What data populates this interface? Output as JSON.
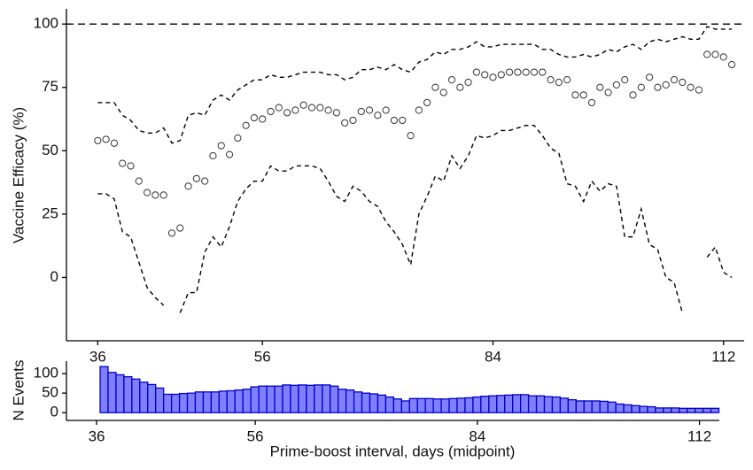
{
  "chart_data": [
    {
      "type": "scatter",
      "ylabel": "Vaccine Efficacy (%)",
      "x": [
        36,
        37,
        38,
        39,
        40,
        41,
        42,
        43,
        44,
        45,
        46,
        47,
        48,
        49,
        50,
        51,
        52,
        53,
        54,
        55,
        56,
        57,
        58,
        59,
        60,
        61,
        62,
        63,
        64,
        65,
        66,
        67,
        68,
        69,
        70,
        71,
        72,
        73,
        74,
        75,
        76,
        77,
        78,
        79,
        80,
        81,
        82,
        83,
        84,
        85,
        86,
        87,
        88,
        89,
        90,
        91,
        92,
        93,
        94,
        95,
        96,
        97,
        98,
        99,
        100,
        101,
        102,
        103,
        104,
        105,
        106,
        107,
        108,
        109,
        110,
        111,
        112,
        113
      ],
      "values": [
        54,
        54.5,
        53,
        45,
        44,
        38,
        33.5,
        32.5,
        32.5,
        17.5,
        19.5,
        36,
        39,
        38,
        48,
        52,
        48.5,
        55,
        60,
        63,
        62.5,
        65.5,
        67,
        65,
        66,
        68,
        67,
        67,
        66,
        65,
        61,
        62,
        65.5,
        66,
        64,
        66,
        62,
        62,
        56,
        66,
        69,
        75,
        73,
        78,
        75,
        77,
        81,
        80,
        79,
        80,
        81,
        81,
        81,
        81,
        81,
        78,
        77,
        78,
        72,
        72,
        69,
        75,
        73,
        76,
        78,
        72,
        75,
        79,
        75,
        76,
        78,
        77,
        75,
        74,
        88,
        88,
        87,
        84
      ],
      "upper": [
        69,
        69,
        69,
        64,
        62,
        58,
        57,
        57,
        59,
        53,
        54,
        64,
        65,
        64,
        70,
        72,
        70,
        74,
        76,
        78,
        78,
        80,
        79,
        79,
        80,
        81,
        81,
        81,
        80,
        80,
        78,
        79,
        82,
        82,
        83,
        82,
        84,
        82,
        81,
        85,
        86,
        89,
        88,
        90,
        90,
        91,
        93,
        91,
        91,
        92,
        92,
        92,
        92,
        92,
        90,
        90,
        88,
        87,
        87,
        88,
        87,
        88,
        90,
        89,
        91,
        92,
        90,
        93,
        94,
        93,
        94,
        95,
        94,
        94,
        99,
        98,
        98,
        98
      ],
      "lower": [
        33,
        33,
        31,
        18,
        16,
        6,
        -4,
        -8,
        -11,
        null,
        -14,
        -6,
        -6,
        10,
        16,
        12,
        20,
        30,
        35,
        38,
        38,
        44,
        42,
        42,
        44,
        44,
        44,
        43,
        38,
        32,
        30,
        36,
        34,
        30,
        28,
        22,
        18,
        13,
        5,
        25,
        32,
        40,
        38,
        48,
        43,
        48,
        56,
        55,
        56,
        58,
        58,
        59,
        60,
        60,
        56,
        51,
        49,
        37,
        36,
        30,
        38,
        34,
        37,
        36,
        16,
        16,
        27,
        13,
        11,
        0,
        -2,
        -14,
        null,
        null,
        8,
        12,
        2,
        0
      ],
      "hline": 100,
      "xlim": [
        32.2,
        114.5
      ],
      "xticks": [
        36,
        56,
        84,
        112
      ],
      "ylim": [
        -25,
        106
      ],
      "yticks": [
        0,
        25,
        50,
        75,
        100
      ]
    },
    {
      "type": "bar",
      "ylabel": "N Events",
      "xlabel": "Prime-boost interval, days (midpoint)",
      "x": [
        36,
        37,
        38,
        39,
        40,
        41,
        42,
        43,
        44,
        45,
        46,
        47,
        48,
        49,
        50,
        51,
        52,
        53,
        54,
        55,
        56,
        57,
        58,
        59,
        60,
        61,
        62,
        63,
        64,
        65,
        66,
        67,
        68,
        69,
        70,
        71,
        72,
        73,
        74,
        75,
        76,
        77,
        78,
        79,
        80,
        81,
        82,
        83,
        84,
        85,
        86,
        87,
        88,
        89,
        90,
        91,
        92,
        93,
        94,
        95,
        96,
        97,
        98,
        99,
        100,
        101,
        102,
        103,
        104,
        105,
        106,
        107,
        108,
        109,
        110,
        111,
        112,
        113
      ],
      "values": [
        118,
        103,
        97,
        92,
        86,
        78,
        72,
        63,
        47,
        47,
        49,
        50,
        53,
        53,
        53,
        55,
        56,
        58,
        60,
        66,
        68,
        68,
        68,
        71,
        70,
        71,
        70,
        71,
        71,
        68,
        60,
        58,
        53,
        50,
        48,
        45,
        40,
        35,
        30,
        36,
        36,
        36,
        35,
        35,
        36,
        37,
        38,
        40,
        42,
        43,
        44,
        45,
        46,
        46,
        43,
        43,
        41,
        40,
        37,
        33,
        30,
        30,
        30,
        29,
        27,
        22,
        20,
        18,
        16,
        15,
        12,
        12,
        12,
        11,
        11,
        11,
        11,
        11
      ],
      "color": "#8080ff",
      "edgecolor": "#0000cc",
      "xlim": [
        32.2,
        114.5
      ],
      "xticks": [
        36,
        56,
        84,
        112
      ],
      "ylim": [
        -20,
        132
      ],
      "yticks": [
        0,
        50,
        100
      ]
    }
  ]
}
